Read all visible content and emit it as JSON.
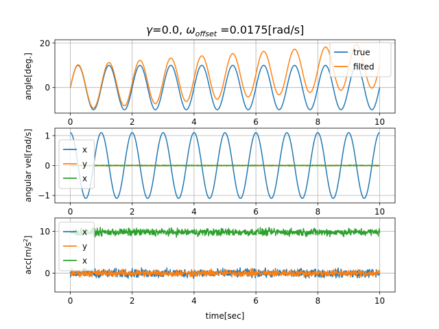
{
  "figure": {
    "title": "γ=0.0, ωoffset =0.0175[rad/s]"
  },
  "colors": {
    "blue": "#1f77b4",
    "orange": "#ff7f0e",
    "green": "#2ca02c",
    "grid": "#b0b0b0",
    "axis": "#000000"
  },
  "chart_data": [
    {
      "type": "line",
      "title": "γ=0.0, ωoffset =0.0175[rad/s]",
      "title_parts": {
        "gamma": "γ",
        "gamma_value": "=0.0, ",
        "omega": "ω",
        "omega_sub": "offset",
        "omega_value": " =0.0175[rad/s]"
      },
      "xlabel": "",
      "ylabel": "angle[deg.]",
      "xlim": [
        -0.5,
        10.5
      ],
      "ylim": [
        -11.5,
        21.5
      ],
      "xticks": [
        0,
        2,
        4,
        6,
        8,
        10
      ],
      "xtick_labels": [
        "0",
        "2",
        "4",
        "6",
        "8",
        "10"
      ],
      "yticks": [
        0,
        20
      ],
      "ytick_labels": [
        "0",
        "20"
      ],
      "grid": true,
      "legend_position": "top-right",
      "series": [
        {
          "name": "true",
          "color": "#1f77b4",
          "form": "sine",
          "amplitude": 10,
          "period_s": 1.0,
          "x_range": [
            0,
            10
          ]
        },
        {
          "name": "filted",
          "color": "#ff7f0e",
          "form": "sine_plus_drift",
          "amplitude": 10,
          "period_s": 1.0,
          "drift_deg_per_s": 1.0,
          "x_range": [
            0,
            10
          ]
        }
      ]
    },
    {
      "type": "line",
      "xlabel": "",
      "ylabel": "angular vel[rad/s]",
      "xlim": [
        -0.5,
        10.5
      ],
      "ylim": [
        -1.25,
        1.25
      ],
      "xticks": [
        0,
        2,
        4,
        6,
        8,
        10
      ],
      "xtick_labels": [
        "0",
        "2",
        "4",
        "6",
        "8",
        "10"
      ],
      "yticks": [
        -1,
        0,
        1
      ],
      "ytick_labels": [
        "−1",
        "0",
        "1"
      ],
      "grid": true,
      "legend_position": "center-left",
      "series": [
        {
          "name": "x",
          "color": "#1f77b4",
          "form": "cosine",
          "amplitude": 1.1,
          "period_s": 1.0,
          "x_range": [
            0,
            10
          ]
        },
        {
          "name": "y",
          "color": "#ff7f0e",
          "form": "noise",
          "mean": 0,
          "noise_amplitude": 0.02,
          "x_range": [
            0,
            10
          ]
        },
        {
          "name": "x",
          "color": "#2ca02c",
          "form": "noise",
          "mean": 0,
          "noise_amplitude": 0.02,
          "x_range": [
            0,
            10
          ]
        }
      ]
    },
    {
      "type": "line",
      "xlabel": "time[sec]",
      "ylabel": "acc[m/s²]",
      "ylabel_parts": {
        "base": "acc[m/s",
        "sup": "2",
        "end": "]"
      },
      "xlim": [
        -0.5,
        10.5
      ],
      "ylim": [
        -4.5,
        13.2
      ],
      "xticks": [
        0,
        2,
        4,
        6,
        8,
        10
      ],
      "xtick_labels": [
        "0",
        "2",
        "4",
        "6",
        "8",
        "10"
      ],
      "yticks": [
        0,
        10
      ],
      "ytick_labels": [
        "0",
        "10"
      ],
      "grid": true,
      "legend_position": "top-left",
      "series": [
        {
          "name": "x",
          "color": "#1f77b4",
          "form": "noise",
          "mean": 0,
          "noise_amplitude": 1.5,
          "x_range": [
            0,
            10
          ]
        },
        {
          "name": "y",
          "color": "#ff7f0e",
          "form": "noise",
          "mean": 0,
          "noise_amplitude": 1.2,
          "x_range": [
            0,
            10
          ]
        },
        {
          "name": "x",
          "color": "#2ca02c",
          "form": "noise",
          "mean": 9.8,
          "noise_amplitude": 1.3,
          "x_range": [
            0,
            10
          ]
        }
      ]
    }
  ]
}
